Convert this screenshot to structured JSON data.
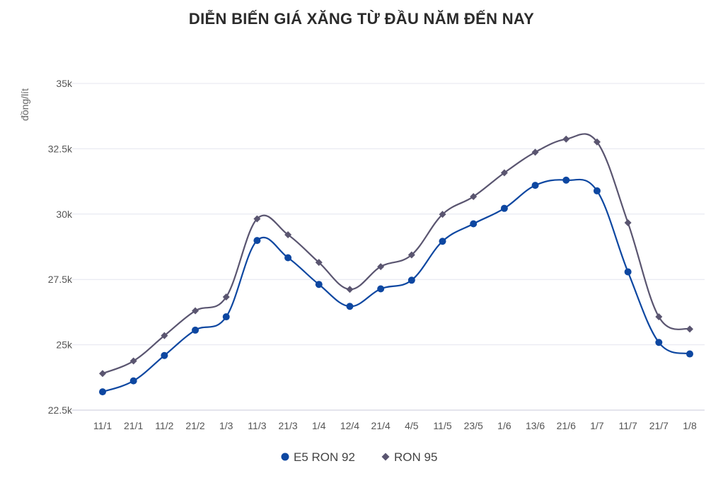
{
  "chart_data": {
    "type": "line",
    "title": "DIỄN BIẾN GIÁ XĂNG TỪ ĐẦU NĂM ĐẾN NAY",
    "ylabel": "đồng/lít",
    "xlabel": "",
    "categories": [
      "11/1",
      "21/1",
      "11/2",
      "21/2",
      "1/3",
      "11/3",
      "21/3",
      "1/4",
      "12/4",
      "21/4",
      "4/5",
      "11/5",
      "23/5",
      "1/6",
      "13/6",
      "21/6",
      "1/7",
      "11/7",
      "21/7",
      "1/8"
    ],
    "ylim": [
      22500,
      35000
    ],
    "yticks": [
      22500,
      25000,
      27500,
      30000,
      32500,
      35000
    ],
    "ytick_labels": [
      "22.5k",
      "25k",
      "27.5k",
      "30k",
      "32.5k",
      "35k"
    ],
    "grid": true,
    "legend_position": "bottom",
    "series": [
      {
        "name": "E5 RON 92",
        "color": "#0d47a1",
        "marker": "circle",
        "values": [
          23200,
          23620,
          24590,
          25560,
          26070,
          28990,
          28330,
          27310,
          26470,
          27140,
          27470,
          28960,
          29630,
          30220,
          31100,
          31300,
          30890,
          27790,
          25090,
          24650
        ]
      },
      {
        "name": "RON 95",
        "color": "#5a5570",
        "marker": "diamond",
        "values": [
          23900,
          24380,
          25350,
          26300,
          26830,
          29820,
          29210,
          28150,
          27120,
          27990,
          28440,
          29990,
          30670,
          31580,
          32370,
          32870,
          32760,
          29670,
          26070,
          25600
        ]
      }
    ]
  }
}
